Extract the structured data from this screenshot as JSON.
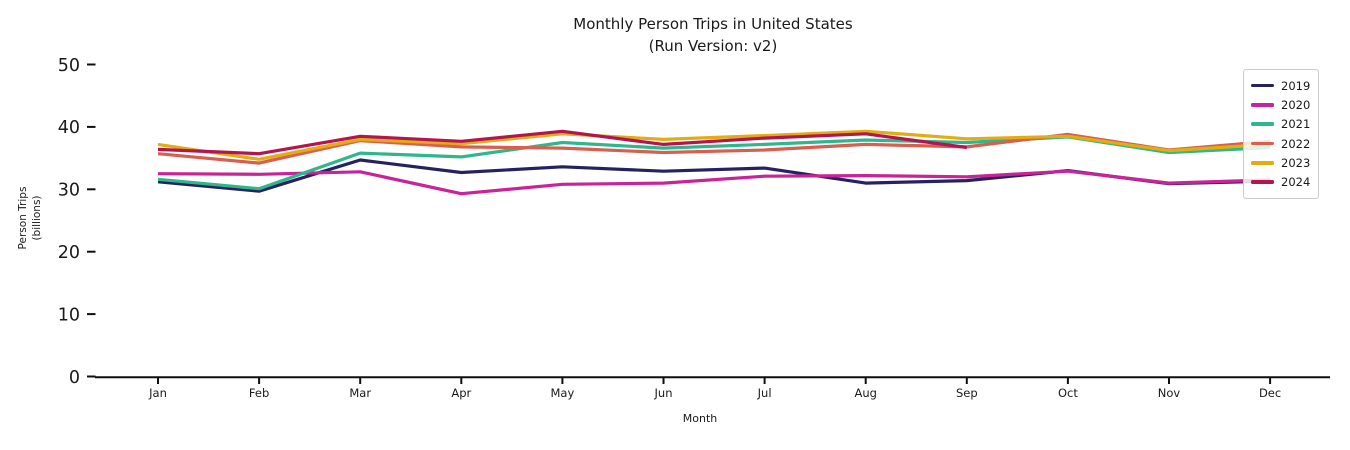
{
  "chart_data": {
    "type": "line",
    "title": "Monthly Person Trips in United States\n(Run Version: v2)",
    "title_line1": "Monthly Person Trips in United States",
    "title_line2": "(Run Version: v2)",
    "xlabel": "Month",
    "ylabel": "Person Trips\n(billions)",
    "ylabel_line1": "Person Trips",
    "ylabel_line2": "(billions)",
    "categories": [
      "Jan",
      "Feb",
      "Mar",
      "Apr",
      "May",
      "Jun",
      "Jul",
      "Aug",
      "Sep",
      "Oct",
      "Nov",
      "Dec"
    ],
    "yticks": [
      0,
      10,
      20,
      30,
      40,
      50
    ],
    "ylim": [
      0,
      52
    ],
    "grid": false,
    "legend_position": "upper right",
    "legend_entries": [
      "2019",
      "2020",
      "2021",
      "2022",
      "2023",
      "2024"
    ],
    "series": [
      {
        "name": "2019",
        "color": "#262262",
        "values": [
          31.2,
          29.7,
          34.7,
          32.7,
          33.6,
          32.9,
          33.4,
          31.0,
          31.4,
          33.0,
          30.9,
          31.3
        ]
      },
      {
        "name": "2020",
        "color": "#c92397",
        "values": [
          32.5,
          32.4,
          32.8,
          29.3,
          30.8,
          31.0,
          32.1,
          32.2,
          32.0,
          32.9,
          31.0,
          31.5
        ]
      },
      {
        "name": "2021",
        "color": "#2eb68c",
        "values": [
          31.6,
          30.1,
          35.8,
          35.2,
          37.5,
          36.6,
          37.2,
          37.9,
          37.5,
          38.4,
          35.9,
          36.7
        ]
      },
      {
        "name": "2022",
        "color": "#d85f4f",
        "values": [
          35.7,
          34.2,
          37.8,
          36.8,
          36.6,
          35.9,
          36.3,
          37.2,
          36.8,
          38.8,
          36.3,
          37.7
        ]
      },
      {
        "name": "2023",
        "color": "#e2ac13",
        "values": [
          37.2,
          34.8,
          38.0,
          37.3,
          38.9,
          38.0,
          38.6,
          39.3,
          38.1,
          38.5,
          36.2,
          37.2
        ]
      },
      {
        "name": "2024",
        "color": "#b5154f",
        "values": [
          36.4,
          35.7,
          38.5,
          37.7,
          39.3,
          37.2,
          38.2,
          38.9,
          36.7,
          null,
          null,
          null
        ]
      }
    ]
  }
}
